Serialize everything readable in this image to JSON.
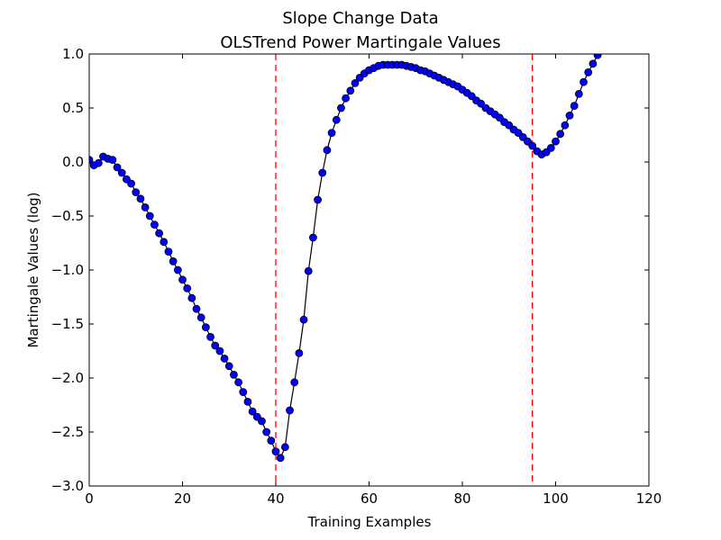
{
  "chart_data": {
    "type": "line",
    "title": "Slope Change Data",
    "subtitle": "OLSTrend Power Martingale Values",
    "x_label": "Training Examples",
    "y_label": "Martingale Values (log)",
    "x": [
      0,
      1,
      2,
      3,
      4,
      5,
      6,
      7,
      8,
      9,
      10,
      11,
      12,
      13,
      14,
      15,
      16,
      17,
      18,
      19,
      20,
      21,
      22,
      23,
      24,
      25,
      26,
      27,
      28,
      29,
      30,
      31,
      32,
      33,
      34,
      35,
      36,
      37,
      38,
      39,
      40,
      41,
      42,
      43,
      44,
      45,
      46,
      47,
      48,
      49,
      50,
      51,
      52,
      53,
      54,
      55,
      56,
      57,
      58,
      59,
      60,
      61,
      62,
      63,
      64,
      65,
      66,
      67,
      68,
      69,
      70,
      71,
      72,
      73,
      74,
      75,
      76,
      77,
      78,
      79,
      80,
      81,
      82,
      83,
      84,
      85,
      86,
      87,
      88,
      89,
      90,
      91,
      92,
      93,
      94,
      95,
      96,
      97,
      98,
      99,
      100,
      101,
      102,
      103,
      104,
      105,
      106,
      107,
      108,
      109
    ],
    "series": [
      {
        "color": "#0000ff",
        "line_color": "#000000",
        "values": [
          0.02,
          -0.03,
          -0.01,
          0.05,
          0.03,
          0.02,
          -0.05,
          -0.1,
          -0.16,
          -0.2,
          -0.28,
          -0.34,
          -0.42,
          -0.5,
          -0.58,
          -0.66,
          -0.74,
          -0.83,
          -0.92,
          -1.0,
          -1.09,
          -1.17,
          -1.26,
          -1.36,
          -1.44,
          -1.53,
          -1.62,
          -1.7,
          -1.75,
          -1.82,
          -1.89,
          -1.97,
          -2.04,
          -2.13,
          -2.22,
          -2.31,
          -2.36,
          -2.4,
          -2.5,
          -2.58,
          -2.68,
          -2.74,
          -2.64,
          -2.3,
          -2.04,
          -1.77,
          -1.46,
          -1.01,
          -0.7,
          -0.35,
          -0.1,
          0.11,
          0.27,
          0.39,
          0.5,
          0.59,
          0.66,
          0.73,
          0.78,
          0.82,
          0.85,
          0.87,
          0.89,
          0.9,
          0.9,
          0.9,
          0.9,
          0.9,
          0.89,
          0.88,
          0.87,
          0.85,
          0.84,
          0.82,
          0.8,
          0.78,
          0.76,
          0.74,
          0.72,
          0.7,
          0.67,
          0.64,
          0.61,
          0.57,
          0.54,
          0.5,
          0.47,
          0.44,
          0.41,
          0.37,
          0.34,
          0.3,
          0.27,
          0.23,
          0.19,
          0.15,
          0.1,
          0.07,
          0.09,
          0.13,
          0.19,
          0.26,
          0.34,
          0.43,
          0.52,
          0.63,
          0.74,
          0.83,
          0.91,
          0.99
        ]
      }
    ],
    "vlines": [
      40,
      95
    ],
    "vline_color": "#ff0000",
    "xlim": [
      0,
      120
    ],
    "xticks": [
      0,
      20,
      40,
      60,
      80,
      100,
      120
    ],
    "ylim": [
      -3.0,
      1.0
    ],
    "yticks": [
      {
        "value": -3.0,
        "label": "−3.0"
      },
      {
        "value": -2.5,
        "label": "−2.5"
      },
      {
        "value": -2.0,
        "label": "−2.0"
      },
      {
        "value": -1.5,
        "label": "−1.5"
      },
      {
        "value": -1.0,
        "label": "−1.0"
      },
      {
        "value": -0.5,
        "label": "−0.5"
      },
      {
        "value": 0.0,
        "label": "0.0"
      },
      0.5,
      {
        "value": 1.0,
        "label": "1.0"
      }
    ]
  }
}
